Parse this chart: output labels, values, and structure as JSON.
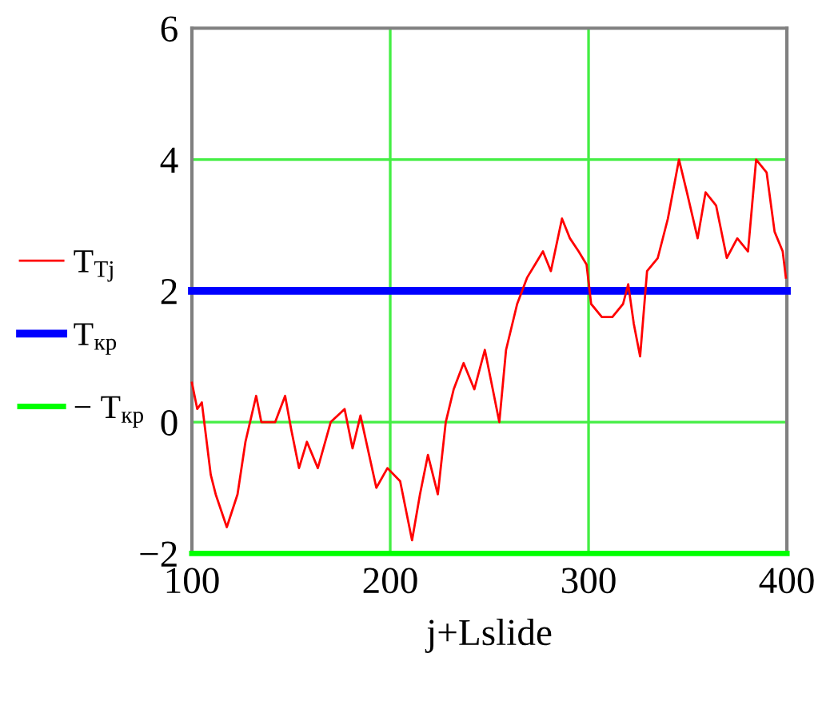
{
  "chart_data": {
    "type": "line",
    "xlabel": "j+Lslide",
    "xlim": [
      100,
      400
    ],
    "xticks": [
      100,
      200,
      300,
      400
    ],
    "ylim": [
      -2,
      6
    ],
    "yticks": [
      {
        "value": -2,
        "label": "−2"
      },
      0,
      2,
      4,
      6
    ],
    "grid": true,
    "legend": "left",
    "line_style": "solid",
    "marker": "none",
    "series": [
      {
        "name": "T$_{Tj}$",
        "color": "#ff0000",
        "x": [
          100,
          102.7,
          105,
          109.5,
          112,
          117.6,
          123,
          127,
          132.4,
          135,
          142,
          147,
          150,
          154,
          158,
          163.5,
          170,
          177,
          181,
          185,
          193,
          198.6,
          205,
          211,
          215,
          219,
          224,
          228,
          232,
          237,
          242.4,
          247.7,
          251.7,
          255,
          258.4,
          264,
          269,
          273,
          277,
          281,
          286.6,
          290.6,
          295,
          299,
          301.3,
          306.7,
          312,
          317.4,
          320,
          322.8,
          326,
          329.5,
          334.9,
          340,
          345.6,
          349.6,
          355,
          359,
          364.3,
          369.7,
          375,
          380.4,
          384.5,
          389.8,
          393.8,
          397.9,
          399.5
        ],
        "values": [
          0.6,
          0.2,
          0.3,
          -0.8,
          -1.1,
          -1.6,
          -1.1,
          -0.3,
          0.4,
          0,
          0,
          0.4,
          -0.1,
          -0.7,
          -0.3,
          -0.7,
          0,
          0.2,
          -0.4,
          0.1,
          -1,
          -0.7,
          -0.9,
          -1.8,
          -1.1,
          -0.5,
          -1.1,
          0,
          0.5,
          0.9,
          0.5,
          1.1,
          0.5,
          0,
          1.1,
          1.8,
          2.2,
          2.4,
          2.6,
          2.3,
          3.1,
          2.8,
          2.6,
          2.4,
          1.8,
          1.6,
          1.6,
          1.8,
          2.1,
          1.5,
          1,
          2.3,
          2.5,
          3.1,
          4,
          3.5,
          2.8,
          3.5,
          3.3,
          2.5,
          2.8,
          2.6,
          4,
          3.8,
          2.9,
          2.6,
          2.2
        ]
      },
      {
        "name": "T$_{кр}$",
        "color": "#0000ff",
        "x": [
          100,
          400
        ],
        "values": [
          2,
          2
        ]
      },
      {
        "name": "− T$_{кр}$",
        "color": "#00ff00",
        "x": [
          100,
          400
        ],
        "values": [
          -2,
          -2
        ]
      }
    ]
  }
}
